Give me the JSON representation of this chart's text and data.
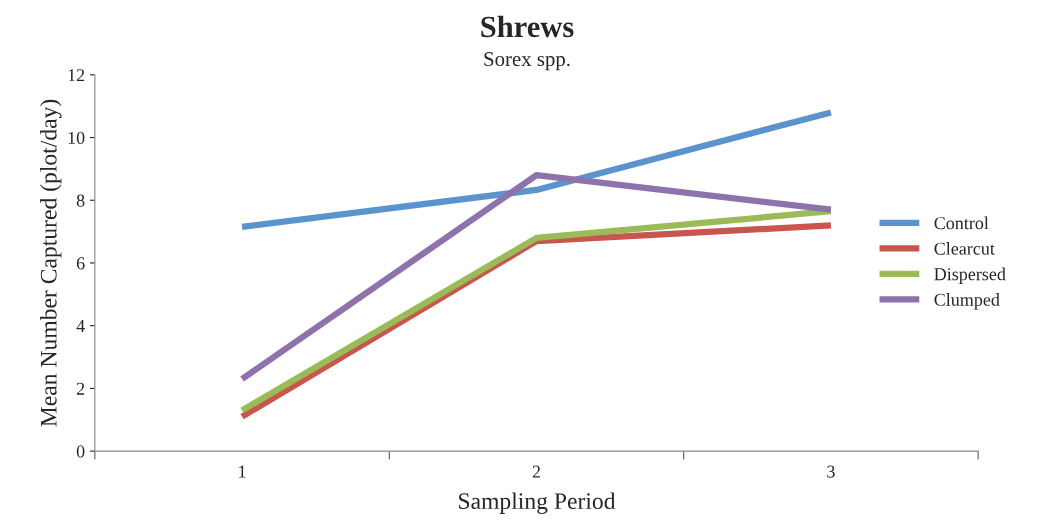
{
  "chart_data": {
    "type": "line",
    "title": "Shrews",
    "subtitle": "Sorex spp.",
    "xlabel": "Sampling Period",
    "ylabel": "Mean Number Captured (plot/day)",
    "x": [
      1,
      2,
      3
    ],
    "xlim": [
      0.5,
      3.5
    ],
    "xticks": [
      {
        "value": 0.5,
        "label": null
      },
      1,
      {
        "value": 1.5,
        "label": null
      },
      2,
      {
        "value": 2.5,
        "label": null
      },
      3,
      {
        "value": 3.5,
        "label": null
      }
    ],
    "series": [
      {
        "name": "Control",
        "color": "#5b93cd",
        "values": [
          7.15,
          8.33,
          10.8
        ]
      },
      {
        "name": "Clearcut",
        "color": "#c9554f",
        "values": [
          1.1,
          6.7,
          7.2
        ]
      },
      {
        "name": "Dispersed",
        "color": "#9bbb59",
        "values": [
          1.3,
          6.8,
          7.65
        ]
      },
      {
        "name": "Clumped",
        "color": "#8e72ab",
        "values": [
          2.3,
          8.8,
          7.7
        ]
      }
    ],
    "ylim": [
      0,
      12
    ],
    "yticks": [
      0,
      2,
      4,
      6,
      8,
      10,
      12
    ],
    "grid": false,
    "legend": "right",
    "marker": "none",
    "line_style": "solid"
  }
}
